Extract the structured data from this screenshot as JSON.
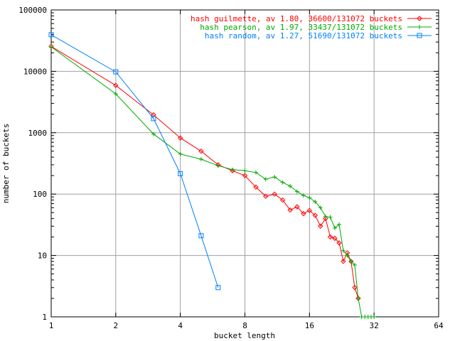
{
  "chart_data": {
    "type": "line",
    "title": "",
    "xlabel": "bucket length",
    "ylabel": "number of buckets",
    "x_scale": "log2",
    "y_scale": "log10",
    "xlim": [
      1,
      64
    ],
    "ylim": [
      1,
      100000
    ],
    "x_ticks": [
      1,
      2,
      4,
      8,
      16,
      32,
      64
    ],
    "x_tick_labels": [
      "1",
      "2",
      "4",
      "8",
      "16",
      "32",
      "64"
    ],
    "y_ticks": [
      1,
      10,
      100,
      1000,
      10000,
      100000
    ],
    "y_tick_labels": [
      "1",
      "10",
      "100",
      "1000",
      "10000",
      "100000"
    ],
    "grid": true,
    "legend_position": "top-right",
    "series": [
      {
        "name": "hash guilmette, av 1.80, 36600/131072 buckets",
        "color": "#ff0000",
        "marker": "diamond",
        "x": [
          1,
          2,
          3,
          4,
          5,
          6,
          7,
          8,
          9,
          10,
          11,
          12,
          13,
          14,
          15,
          16,
          17,
          18,
          19,
          20,
          21,
          22,
          23,
          24,
          25,
          26,
          27
        ],
        "y": [
          25500,
          5900,
          1950,
          820,
          500,
          300,
          240,
          200,
          130,
          92,
          100,
          80,
          55,
          62,
          48,
          54,
          45,
          30,
          40,
          20,
          19,
          16,
          8,
          11,
          8,
          3,
          2
        ]
      },
      {
        "name": "hash pearson, av 1.97, 33437/131072 buckets",
        "color": "#00aa00",
        "marker": "plus",
        "x": [
          1,
          2,
          3,
          4,
          5,
          6,
          7,
          8,
          9,
          10,
          11,
          12,
          13,
          14,
          15,
          16,
          17,
          18,
          19,
          20,
          21,
          22,
          23,
          24,
          25,
          26,
          27,
          28,
          29,
          30,
          31,
          32
        ],
        "y": [
          25000,
          4300,
          950,
          450,
          370,
          290,
          250,
          240,
          225,
          175,
          190,
          155,
          135,
          110,
          95,
          87,
          75,
          60,
          43,
          42,
          28,
          32,
          12,
          10,
          8,
          7,
          2,
          1,
          1,
          1,
          1,
          1
        ]
      },
      {
        "name": "hash random, av 1.27, 51690/131072 buckets",
        "color": "#0080ff",
        "marker": "square",
        "x": [
          1,
          2,
          3,
          4,
          5,
          6
        ],
        "y": [
          39500,
          9800,
          1700,
          215,
          21,
          3
        ]
      }
    ]
  }
}
